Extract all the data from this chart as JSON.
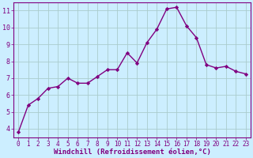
{
  "x": [
    0,
    1,
    2,
    3,
    4,
    5,
    6,
    7,
    8,
    9,
    10,
    11,
    12,
    13,
    14,
    15,
    16,
    17,
    18,
    19,
    20,
    21,
    22,
    23
  ],
  "y": [
    3.8,
    5.4,
    5.8,
    6.4,
    6.5,
    7.0,
    6.7,
    6.7,
    7.1,
    7.5,
    7.5,
    8.5,
    7.9,
    9.1,
    9.9,
    11.1,
    11.2,
    10.1,
    9.4,
    7.8,
    7.6,
    7.7,
    7.4,
    7.25
  ],
  "line_color": "#800080",
  "marker": "D",
  "marker_size": 2.2,
  "xlabel": "Windchill (Refroidissement éolien,°C)",
  "xlim": [
    -0.5,
    23.5
  ],
  "ylim": [
    3.5,
    11.5
  ],
  "yticks": [
    4,
    5,
    6,
    7,
    8,
    9,
    10,
    11
  ],
  "xticks": [
    0,
    1,
    2,
    3,
    4,
    5,
    6,
    7,
    8,
    9,
    10,
    11,
    12,
    13,
    14,
    15,
    16,
    17,
    18,
    19,
    20,
    21,
    22,
    23
  ],
  "bg_color": "#cceeff",
  "grid_color": "#aacccc",
  "tick_color": "#800080",
  "label_color": "#800080",
  "line_width": 1.0,
  "tick_fontsize": 5.5,
  "xlabel_fontsize": 6.5
}
